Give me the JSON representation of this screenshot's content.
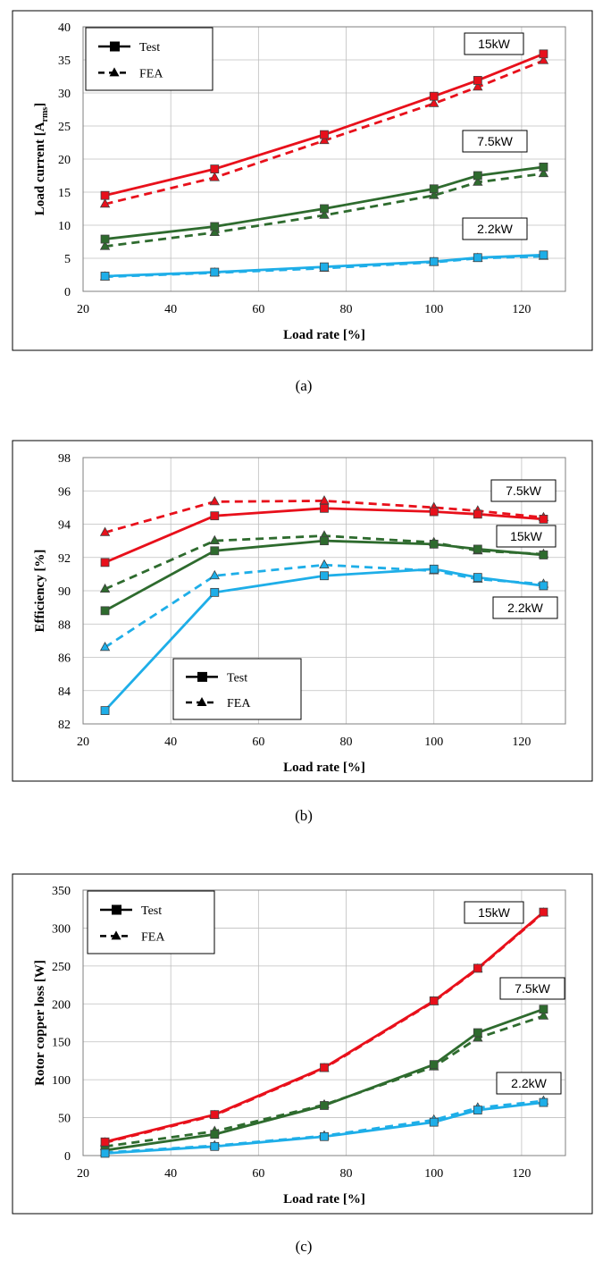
{
  "legend": {
    "test_label": "Test",
    "fea_label": "FEA"
  },
  "colors": {
    "red": "#e8101b",
    "green": "#2e6b2e",
    "blue": "#1eaee8"
  },
  "chart_data": [
    {
      "type": "line",
      "caption": "(a)",
      "xlabel": "Load rate [%]",
      "ylabel_main": "Load current [A",
      "ylabel_sub": "rms",
      "ylabel_end": "]",
      "xlim": [
        20,
        130
      ],
      "ylim": [
        0,
        40
      ],
      "xticks": [
        "20",
        "40",
        "60",
        "80",
        "100",
        "120"
      ],
      "yticks": [
        "0",
        "5",
        "10",
        "15",
        "20",
        "25",
        "30",
        "35",
        "40"
      ],
      "x": [
        25,
        50,
        75,
        100,
        110,
        125
      ],
      "series": [
        {
          "name": "15kW",
          "method": "Test",
          "color": "red",
          "values": [
            14.5,
            18.5,
            23.7,
            29.5,
            31.9,
            35.9
          ]
        },
        {
          "name": "15kW",
          "method": "FEA",
          "color": "red",
          "values": [
            13.2,
            17.2,
            22.8,
            28.4,
            30.9,
            34.9
          ]
        },
        {
          "name": "7.5kW",
          "method": "Test",
          "color": "green",
          "values": [
            7.9,
            9.8,
            12.5,
            15.5,
            17.5,
            18.8
          ]
        },
        {
          "name": "7.5kW",
          "method": "FEA",
          "color": "green",
          "values": [
            6.8,
            8.9,
            11.5,
            14.5,
            16.5,
            17.8
          ]
        },
        {
          "name": "2.2kW",
          "method": "Test",
          "color": "blue",
          "values": [
            2.3,
            2.9,
            3.7,
            4.5,
            5.1,
            5.5
          ]
        },
        {
          "name": "2.2kW",
          "method": "FEA",
          "color": "blue",
          "values": [
            2.2,
            2.8,
            3.5,
            4.4,
            5.0,
            5.3
          ]
        }
      ],
      "annotations": [
        "15kW",
        "7.5kW",
        "2.2kW"
      ]
    },
    {
      "type": "line",
      "caption": "(b)",
      "xlabel": "Load rate [%]",
      "ylabel_main": "Efficiency [%]",
      "ylabel_sub": "",
      "ylabel_end": "",
      "xlim": [
        20,
        130
      ],
      "ylim": [
        82,
        98
      ],
      "xticks": [
        "20",
        "40",
        "60",
        "80",
        "100",
        "120"
      ],
      "yticks": [
        "82",
        "84",
        "86",
        "88",
        "90",
        "92",
        "94",
        "96",
        "98"
      ],
      "x": [
        25,
        50,
        75,
        100,
        110,
        125
      ],
      "series": [
        {
          "name": "7.5kW",
          "method": "Test",
          "color": "red",
          "values": [
            91.7,
            94.5,
            94.95,
            94.75,
            94.6,
            94.3
          ]
        },
        {
          "name": "7.5kW",
          "method": "FEA",
          "color": "red",
          "values": [
            93.5,
            95.35,
            95.4,
            95.0,
            94.8,
            94.4
          ]
        },
        {
          "name": "15kW",
          "method": "Test",
          "color": "green",
          "values": [
            88.8,
            92.4,
            93.0,
            92.8,
            92.5,
            92.15
          ]
        },
        {
          "name": "15kW",
          "method": "FEA",
          "color": "green",
          "values": [
            90.1,
            93.0,
            93.3,
            92.9,
            92.4,
            92.2
          ]
        },
        {
          "name": "2.2kW",
          "method": "Test",
          "color": "blue",
          "values": [
            82.8,
            89.9,
            90.9,
            91.3,
            90.8,
            90.3
          ]
        },
        {
          "name": "2.2kW",
          "method": "FEA",
          "color": "blue",
          "values": [
            86.6,
            90.9,
            91.55,
            91.2,
            90.7,
            90.4
          ]
        }
      ],
      "annotations": [
        "7.5kW",
        "15kW",
        "2.2kW"
      ]
    },
    {
      "type": "line",
      "caption": "(c)",
      "xlabel": "Load rate [%]",
      "ylabel_main": "Rotor copper loss [W]",
      "ylabel_sub": "",
      "ylabel_end": "",
      "xlim": [
        20,
        130
      ],
      "ylim": [
        0,
        350
      ],
      "xticks": [
        "20",
        "40",
        "60",
        "80",
        "100",
        "120"
      ],
      "yticks": [
        "0",
        "50",
        "100",
        "150",
        "200",
        "250",
        "300",
        "350"
      ],
      "x": [
        25,
        50,
        75,
        100,
        110,
        125
      ],
      "series": [
        {
          "name": "15kW",
          "method": "Test",
          "color": "red",
          "values": [
            18,
            54,
            116,
            204,
            247,
            321
          ]
        },
        {
          "name": "15kW",
          "method": "FEA",
          "color": "red",
          "values": [
            17,
            53,
            115,
            203,
            246,
            320
          ]
        },
        {
          "name": "7.5kW",
          "method": "Test",
          "color": "green",
          "values": [
            7,
            28,
            66,
            120,
            162,
            193
          ]
        },
        {
          "name": "7.5kW",
          "method": "FEA",
          "color": "green",
          "values": [
            12,
            32,
            67,
            117,
            155,
            184
          ]
        },
        {
          "name": "2.2kW",
          "method": "Test",
          "color": "blue",
          "values": [
            3,
            12,
            25,
            44,
            60,
            70
          ]
        },
        {
          "name": "2.2kW",
          "method": "FEA",
          "color": "blue",
          "values": [
            4,
            13,
            26,
            47,
            63,
            72
          ]
        }
      ],
      "annotations": [
        "15kW",
        "7.5kW",
        "2.2kW"
      ]
    }
  ]
}
